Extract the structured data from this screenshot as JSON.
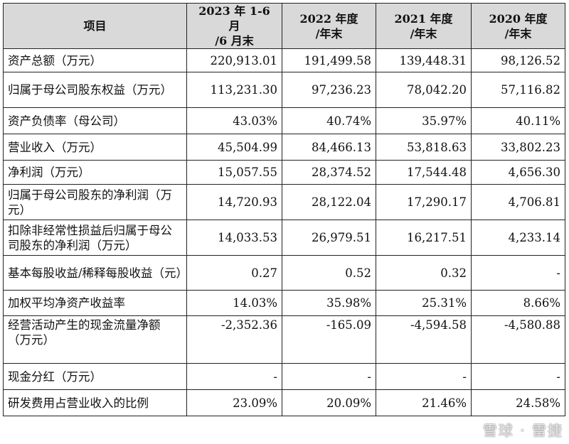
{
  "header": {
    "item": "项目",
    "col1": "2023 年 1-6 月\n/6 月末",
    "col2": "2022 年度\n/年末",
    "col3": "2021 年度\n/年末",
    "col4": "2020 年度\n/年末"
  },
  "rows": [
    {
      "label": "资产总额（万元）",
      "v": [
        "220,913.01",
        "191,499.58",
        "139,448.31",
        "98,126.52"
      ]
    },
    {
      "label": "归属于母公司股东权益（万元）",
      "v": [
        "113,231.30",
        "97,236.23",
        "78,042.20",
        "57,116.82"
      ]
    },
    {
      "label": "资产负债率（母公司）",
      "v": [
        "43.03%",
        "40.74%",
        "35.97%",
        "40.11%"
      ]
    },
    {
      "label": "营业收入（万元）",
      "v": [
        "45,504.99",
        "84,466.13",
        "53,818.63",
        "33,802.23"
      ]
    },
    {
      "label": "净利润（万元）",
      "v": [
        "15,057.55",
        "28,374.52",
        "17,544.48",
        "4,656.30"
      ]
    },
    {
      "label": "归属于母公司股东的净利润（万元）",
      "v": [
        "14,720.93",
        "28,122.04",
        "17,290.17",
        "4,706.81"
      ]
    },
    {
      "label": "扣除非经常性损益后归属于母公司股东的净利润（万元）",
      "v": [
        "14,033.53",
        "26,979.51",
        "16,217.51",
        "4,233.14"
      ]
    },
    {
      "label": "基本每股收益/稀释每股收益（元）",
      "v": [
        "0.27",
        "0.52",
        "0.32",
        "-"
      ]
    },
    {
      "label": "加权平均净资产收益率",
      "v": [
        "14.03%",
        "35.98%",
        "25.31%",
        "8.66%"
      ]
    },
    {
      "label": "经营活动产生的现金流量净额（万元）",
      "v": [
        "-2,352.36",
        "-165.09",
        "-4,594.58",
        "-4,580.88"
      ]
    },
    {
      "label": "现金分红（万元）",
      "v": [
        "-",
        "-",
        "-",
        "-"
      ]
    },
    {
      "label": "研发费用占营业收入的比例",
      "v": [
        "23.09%",
        "20.09%",
        "21.46%",
        "24.58%"
      ]
    }
  ],
  "watermark": "雪球 · 雷捷"
}
